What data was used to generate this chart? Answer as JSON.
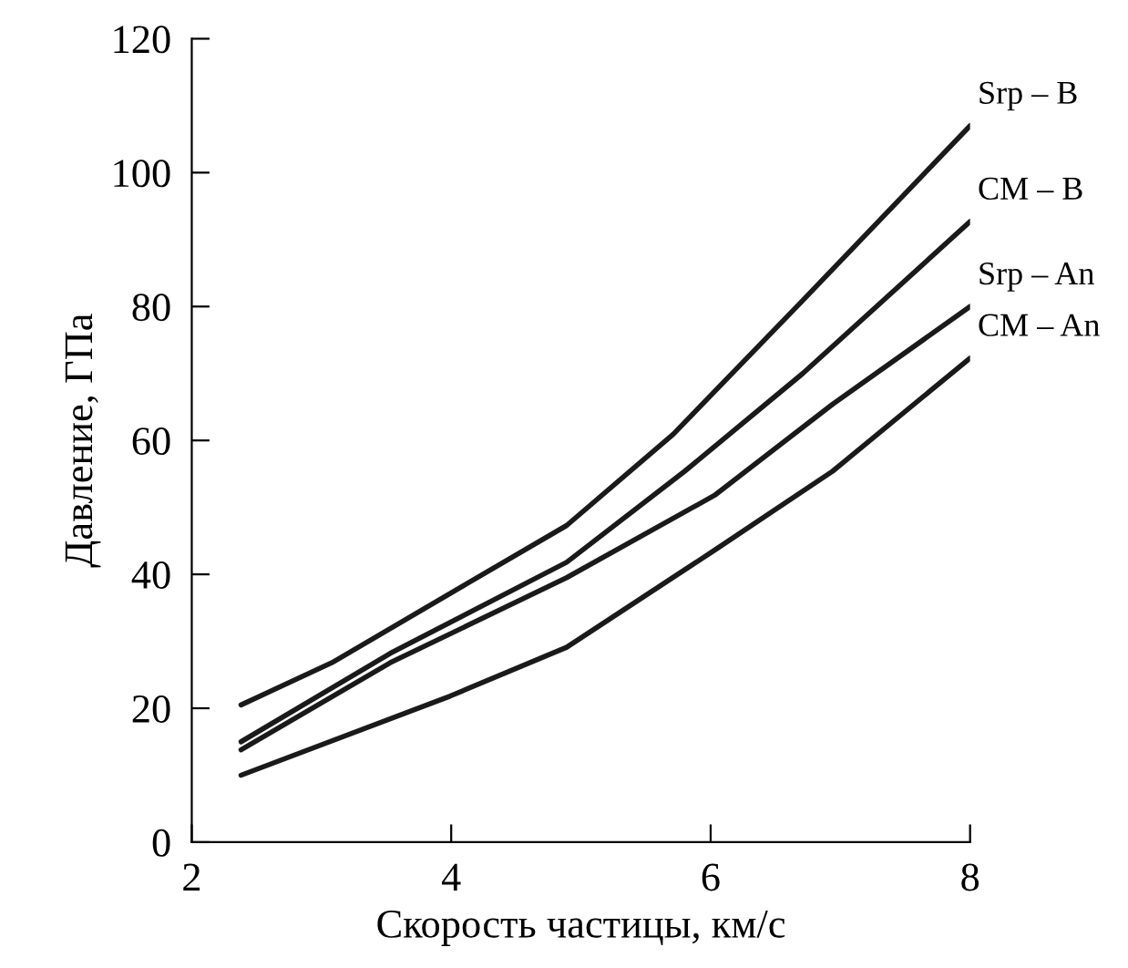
{
  "chart_data": {
    "type": "line",
    "xlabel": "Скорость частицы, км/с",
    "ylabel": "Давление, ГПа",
    "xlim": [
      2,
      8
    ],
    "xticks": [
      2,
      4,
      6,
      8
    ],
    "ylim": [
      0,
      120
    ],
    "yticks": [
      0,
      20,
      40,
      60,
      80,
      100,
      120
    ],
    "grid": false,
    "legend": false,
    "marker": "none",
    "line_style": "solid",
    "series": [
      {
        "name": "Srp – B",
        "color": "#1a1a1a",
        "x": [
          2.38,
          3.08,
          4.12,
          4.89,
          5.71,
          6.71,
          8.0
        ],
        "values": [
          20.5,
          26.8,
          38.6,
          47.3,
          60.9,
          80.9,
          107
        ]
      },
      {
        "name": "CM – B",
        "color": "#1a1a1a",
        "x": [
          2.38,
          3.53,
          4.89,
          5.8,
          6.71,
          8.0
        ],
        "values": [
          15.0,
          28.2,
          41.8,
          55.4,
          70.0,
          92.7
        ]
      },
      {
        "name": "Srp – An",
        "color": "#1a1a1a",
        "x": [
          2.38,
          3.53,
          4.89,
          6.03,
          6.94,
          8.0
        ],
        "values": [
          13.8,
          26.8,
          39.5,
          51.8,
          65.4,
          80.0
        ]
      },
      {
        "name": "CM – An",
        "color": "#1a1a1a",
        "x": [
          2.38,
          3.99,
          4.89,
          6.03,
          6.94,
          8.0
        ],
        "values": [
          10.0,
          21.8,
          29.1,
          43.6,
          55.4,
          72.3
        ]
      }
    ]
  }
}
